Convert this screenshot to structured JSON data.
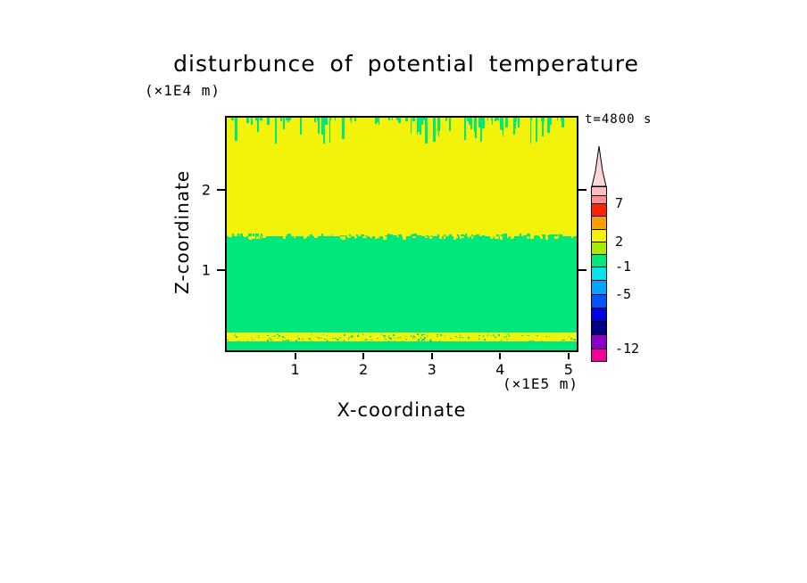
{
  "title": "disturbunce of potential temperature",
  "timestamp_label": "t=4800 s",
  "axes": {
    "x_label": "X-coordinate",
    "x_units": "(×1E5 m)",
    "x_ticks": [
      "1",
      "2",
      "3",
      "4",
      "5"
    ],
    "y_label": "Z-coordinate",
    "y_units": "(×1E4 m)",
    "y_ticks": [
      "2",
      "1"
    ]
  },
  "colorbar": {
    "arrow_color": "#ffd6d6",
    "labels": [
      "7",
      "2",
      "-1",
      "-5",
      "-12"
    ],
    "segments": [
      {
        "color": "#ffbdbd",
        "h": 10
      },
      {
        "color": "#ff8e8e",
        "h": 9,
        "label": "7"
      },
      {
        "color": "#ff2400",
        "h": 14
      },
      {
        "color": "#ff9c00",
        "h": 15
      },
      {
        "color": "#f2f20a",
        "h": 14,
        "label": "2"
      },
      {
        "color": "#a7ec00",
        "h": 14
      },
      {
        "color": "#00e87d",
        "h": 14,
        "label": "-1"
      },
      {
        "color": "#00e5e5",
        "h": 15
      },
      {
        "color": "#00a4ff",
        "h": 16,
        "label": "-5"
      },
      {
        "color": "#0054ff",
        "h": 15
      },
      {
        "color": "#0000dc",
        "h": 15
      },
      {
        "color": "#000084",
        "h": 15
      },
      {
        "color": "#8a00c8",
        "h": 16,
        "label": "-12"
      },
      {
        "color": "#f00096",
        "h": 13
      }
    ]
  },
  "chart_data": {
    "type": "heatmap",
    "title": "disturbunce of potential temperature",
    "xlabel": "X-coordinate (×1E5 m)",
    "ylabel": "Z-coordinate (×1E4 m)",
    "time": "t=4800 s",
    "x_range": [
      0,
      5.12
    ],
    "y_range": [
      0,
      2.9
    ],
    "x_tick_values": [
      1,
      2,
      3,
      4,
      5
    ],
    "y_tick_values": [
      2,
      1
    ],
    "colorbar_levels": [
      7,
      2,
      -1,
      -5,
      -12
    ],
    "colors": {
      "yellow": "#f2f20a",
      "green": "#00e87d"
    },
    "layers": [
      {
        "name": "upper-yellow",
        "z_top": 2.9,
        "z_bottom": 1.42,
        "value_band": "2 to 7",
        "color": "#f2f20a",
        "note": "yellow upper layer with narrow green plumes descending from the top boundary"
      },
      {
        "name": "middle-green",
        "z_top": 1.42,
        "z_bottom": 0.22,
        "value_band": "-1 to 2",
        "color": "#00e87d",
        "note": "uniform green layer"
      },
      {
        "name": "lower-yellow-band",
        "z_top": 0.22,
        "z_bottom": 0.11,
        "value_band": "2 to 7",
        "color": "#f2f20a",
        "note": "thin speckled yellow band near the surface"
      },
      {
        "name": "bottom-green",
        "z_top": 0.11,
        "z_bottom": 0.0,
        "value_band": "-1 to 2",
        "color": "#00e87d"
      }
    ],
    "top_plumes": {
      "count": 100,
      "min_depth_z": 0.03,
      "max_depth_z": 0.33
    },
    "band_speckles": 150,
    "boundary_noise_count": 120
  }
}
